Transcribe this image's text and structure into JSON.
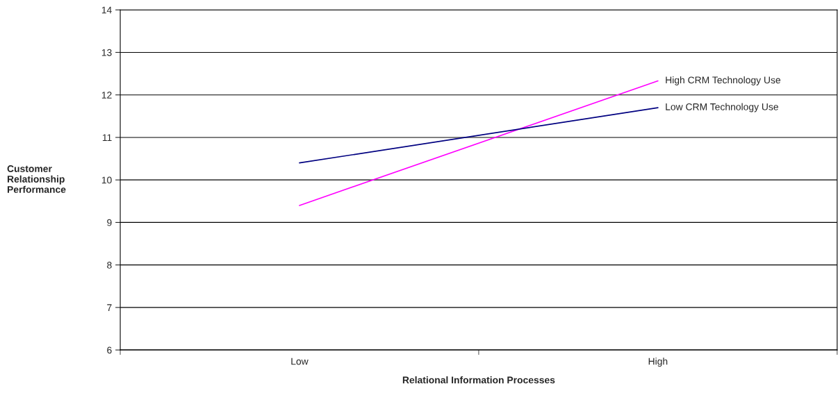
{
  "chart_data": {
    "type": "line",
    "xlabel": "Relational Information Processes",
    "ylabel": "Customer\nRelationship\nPerformance",
    "categories": [
      "Low",
      "High"
    ],
    "series": [
      {
        "name": "High CRM Technology Use",
        "color": "#ff00ff",
        "values": [
          9.4,
          12.33
        ]
      },
      {
        "name": "Low CRM Technology Use",
        "color": "#000080",
        "values": [
          10.4,
          11.7
        ]
      }
    ],
    "ylim": [
      6,
      14
    ],
    "yticks": [
      6,
      7,
      8,
      9,
      10,
      11,
      12,
      13,
      14
    ],
    "grid": "y",
    "legend": false
  }
}
